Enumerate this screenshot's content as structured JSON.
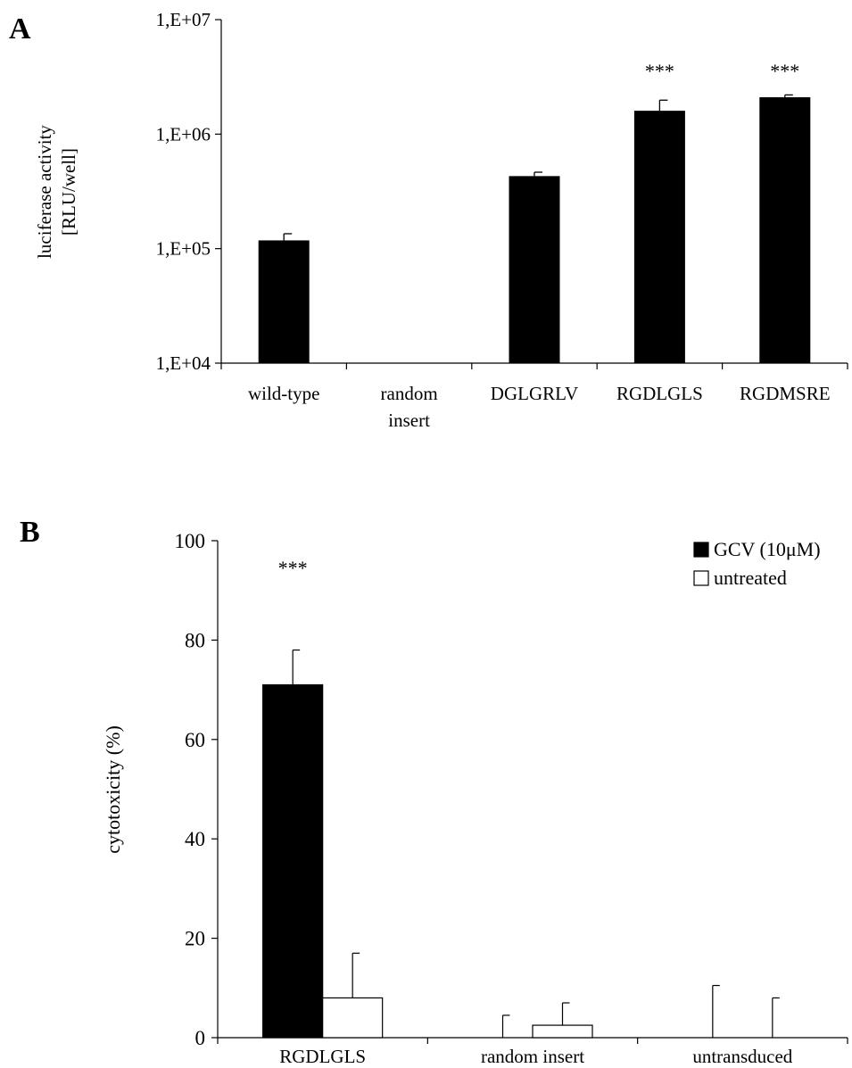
{
  "panels": {
    "a_label": "A",
    "b_label": "B"
  },
  "chart_data": [
    {
      "type": "bar",
      "yscale": "log",
      "ylabel_lines": [
        "luciferase activity",
        "[RLU/well]"
      ],
      "ylim": [
        10000,
        10000000
      ],
      "yticks": [
        10000,
        100000,
        1000000,
        10000000
      ],
      "ytick_labels": [
        "1,E+04",
        "1,E+05",
        "1,E+06",
        "1,E+07"
      ],
      "grid": false,
      "categories": [
        [
          "wild-type"
        ],
        [
          "random",
          "insert"
        ],
        [
          "DGLGRLV"
        ],
        [
          "RGDLGLS"
        ],
        [
          "RGDMSRE"
        ]
      ],
      "values": [
        118000,
        null,
        430000,
        1600000,
        2100000
      ],
      "errors": [
        17000,
        null,
        35000,
        380000,
        100000
      ],
      "annotations": [
        "",
        "",
        "",
        "***",
        "***"
      ],
      "bar_color": "#000000"
    },
    {
      "type": "bar",
      "ylabel": "cytotoxicity (%)",
      "ylim": [
        0,
        100
      ],
      "yticks": [
        0,
        20,
        40,
        60,
        80,
        100
      ],
      "grid": false,
      "legend_position": "top-right",
      "categories": [
        "RGDLGLS",
        "random insert",
        "untransduced"
      ],
      "series": [
        {
          "name": "GCV (10μM)",
          "color": "#000000",
          "values": [
            71,
            0,
            0
          ],
          "errors": [
            7,
            4.5,
            10.5
          ],
          "annotations": [
            "***",
            "",
            ""
          ]
        },
        {
          "name": "untreated",
          "color": "#ffffff",
          "values": [
            8,
            2.5,
            0
          ],
          "errors": [
            9,
            4.5,
            8
          ],
          "annotations": [
            "",
            "",
            ""
          ]
        }
      ]
    }
  ]
}
